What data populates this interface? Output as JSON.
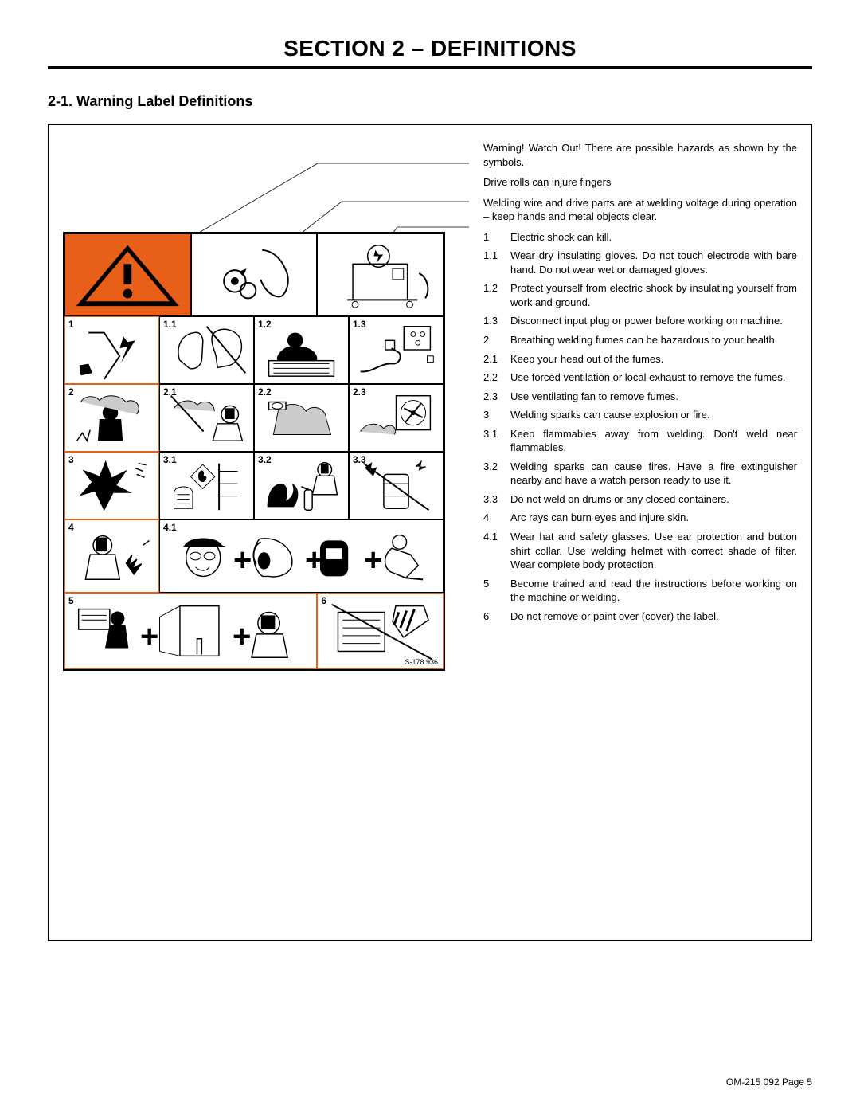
{
  "section_title": "SECTION 2 – DEFINITIONS",
  "subsection_title": "2-1. Warning Label Definitions",
  "callouts": {
    "c1": "Warning! Watch Out! There are possible hazards as shown by the symbols.",
    "c2": "Drive rolls can injure fingers",
    "c3": "Welding wire and drive parts are at welding voltage during operation – keep hands and metal objects clear."
  },
  "figure_ref": "S-178 936",
  "definitions": [
    {
      "n": "1",
      "t": "Electric shock can kill."
    },
    {
      "n": "1.1",
      "t": "Wear dry insulating gloves. Do not touch electrode with bare hand. Do not wear wet or damaged gloves."
    },
    {
      "n": "1.2",
      "t": "Protect yourself from electric shock by insulating yourself from work and ground."
    },
    {
      "n": "1.3",
      "t": "Disconnect input plug or power before working on machine."
    },
    {
      "n": "2",
      "t": "Breathing welding fumes can be hazardous to your health."
    },
    {
      "n": "2.1",
      "t": "Keep your head out of the fumes."
    },
    {
      "n": "2.2",
      "t": "Use forced ventilation or local exhaust to remove the fumes."
    },
    {
      "n": "2.3",
      "t": "Use ventilating fan to remove fumes."
    },
    {
      "n": "3",
      "t": "Welding sparks can cause explosion or fire."
    },
    {
      "n": "3.1",
      "t": "Keep flammables away from welding. Don't weld near flammables."
    },
    {
      "n": "3.2",
      "t": "Welding sparks can cause fires. Have a fire extinguisher nearby and have a watch person ready to use it."
    },
    {
      "n": "3.3",
      "t": "Do not weld on drums or any closed containers."
    },
    {
      "n": "4",
      "t": "Arc rays can burn eyes and injure skin."
    },
    {
      "n": "4.1",
      "t": "Wear hat and safety glasses. Use ear protection and button shirt collar. Use welding helmet with correct shade of filter. Wear complete body protection."
    },
    {
      "n": "5",
      "t": "Become trained and read the instructions before working on the machine or welding."
    },
    {
      "n": "6",
      "t": "Do not remove or paint over (cover) the label."
    }
  ],
  "cell_labels": {
    "r1": [
      "1",
      "1.1",
      "1.2",
      "1.3"
    ],
    "r2": [
      "2",
      "2.1",
      "2.2",
      "2.3"
    ],
    "r3": [
      "3",
      "3.1",
      "3.2",
      "3.3"
    ],
    "r4": [
      "4",
      "4.1"
    ],
    "r5": [
      "5",
      "6"
    ]
  },
  "colors": {
    "accent": "#e85f1a",
    "text": "#000000",
    "bg": "#ffffff"
  },
  "footer": "OM-215 092 Page 5"
}
